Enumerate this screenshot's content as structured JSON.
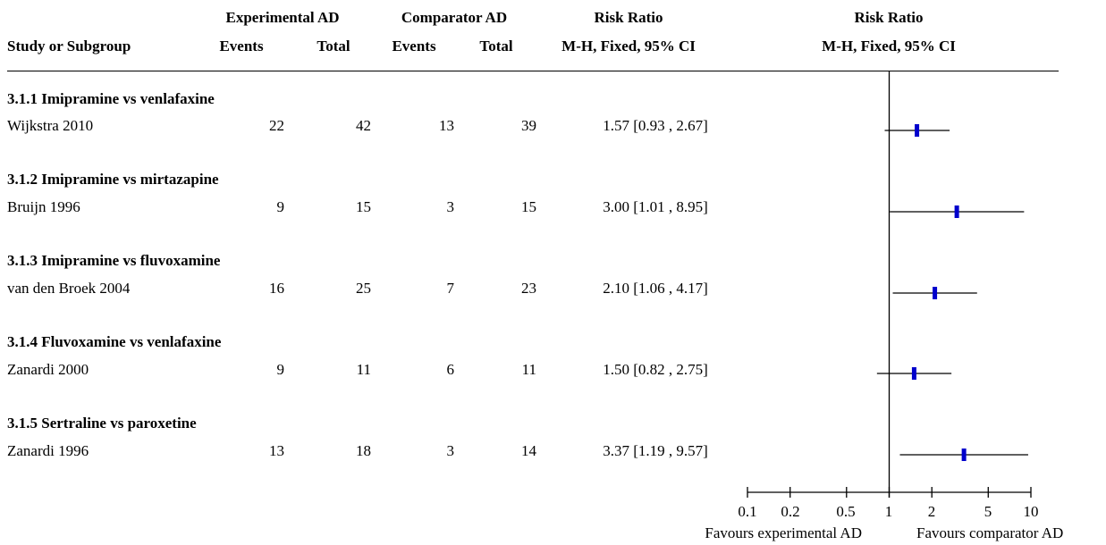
{
  "header": {
    "group1": "Experimental AD",
    "group2": "Comparator AD",
    "effect": "Risk Ratio",
    "effect_method": "M-H, Fixed, 95% CI",
    "plot_title": "Risk Ratio",
    "plot_method": "M-H, Fixed, 95% CI",
    "study_col": "Study or Subgroup",
    "events": "Events",
    "total": "Total"
  },
  "subgroups": [
    {
      "title": "3.1.1 Imipramine vs venlafaxine",
      "study": "Wijkstra 2010",
      "e_events": "22",
      "e_total": "42",
      "c_events": "13",
      "c_total": "39",
      "ci_text": "1.57 [0.93 , 2.67]"
    },
    {
      "title": "3.1.2 Imipramine vs mirtazapine",
      "study": "Bruijn 1996",
      "e_events": "9",
      "e_total": "15",
      "c_events": "3",
      "c_total": "15",
      "ci_text": "3.00 [1.01 , 8.95]"
    },
    {
      "title": "3.1.3 Imipramine vs fluvoxamine",
      "study": "van den Broek 2004",
      "e_events": "16",
      "e_total": "25",
      "c_events": "7",
      "c_total": "23",
      "ci_text": "2.10 [1.06 , 4.17]"
    },
    {
      "title": "3.1.4 Fluvoxamine vs venlafaxine",
      "study": "Zanardi 2000",
      "e_events": "9",
      "e_total": "11",
      "c_events": "6",
      "c_total": "11",
      "ci_text": "1.50 [0.82 , 2.75]"
    },
    {
      "title": "3.1.5 Sertraline vs paroxetine",
      "study": "Zanardi 1996",
      "e_events": "13",
      "e_total": "18",
      "c_events": "3",
      "c_total": "14",
      "ci_text": "3.37 [1.19 , 9.57]"
    }
  ],
  "axis": {
    "ticks": [
      "0.1",
      "0.2",
      "0.5",
      "1",
      "2",
      "5",
      "10"
    ],
    "favours_left": "Favours experimental AD",
    "favours_right": "Favours comparator AD"
  },
  "chart_data": {
    "type": "forest",
    "scale": "log",
    "xlim": [
      0.1,
      10
    ],
    "null_line": 1,
    "marker_color": "#0000cc",
    "studies": [
      {
        "name": "Wijkstra 2010",
        "rr": 1.57,
        "lower": 0.93,
        "upper": 2.67
      },
      {
        "name": "Bruijn 1996",
        "rr": 3.0,
        "lower": 1.01,
        "upper": 8.95
      },
      {
        "name": "van den Broek 2004",
        "rr": 2.1,
        "lower": 1.06,
        "upper": 4.17
      },
      {
        "name": "Zanardi 2000",
        "rr": 1.5,
        "lower": 0.82,
        "upper": 2.75
      },
      {
        "name": "Zanardi 1996",
        "rr": 3.37,
        "lower": 1.19,
        "upper": 9.57
      }
    ]
  }
}
